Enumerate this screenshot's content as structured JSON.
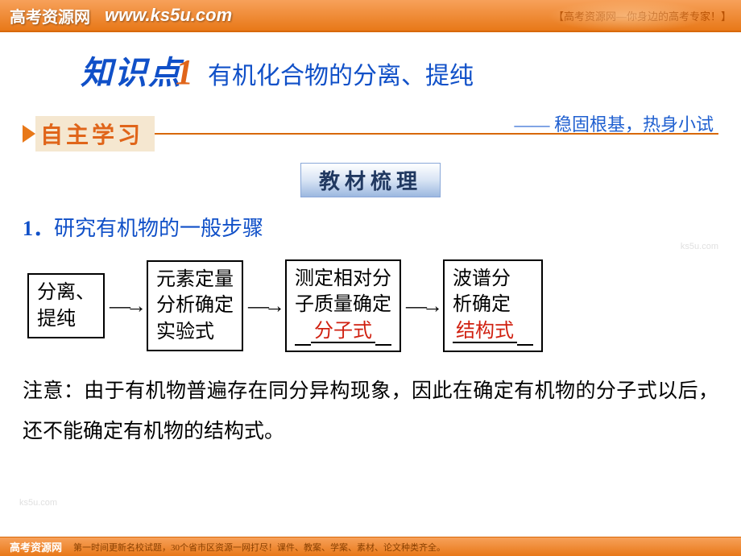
{
  "banner": {
    "logo": "高考资源网",
    "url": "www.ks5u.com",
    "tagline": "【高考资源网—你身边的高考专家！】"
  },
  "title": {
    "prefix": "知识点",
    "num": "1",
    "main": "有机化合物的分离、提纯"
  },
  "section": {
    "label": "自主学习",
    "sub": "—— 稳固根基，热身小试"
  },
  "subheader": "教材梳理",
  "heading1_num": "1．",
  "heading1_text": "研究有机物的一般步骤",
  "flow": {
    "box1_l1": "分离、",
    "box1_l2": "提纯",
    "arrow": "—→",
    "box2_l1": "元素定量",
    "box2_l2": "分析确定",
    "box2_l3": "实验式",
    "box3_l1": "测定相对分",
    "box3_l2": "子质量确定",
    "box3_fill": "分子式",
    "box4_l1": "波谱分",
    "box4_l2": "析确定",
    "box4_fill": "结构式"
  },
  "note": "注意：由于有机物普遍存在同分异构现象，因此在确定有机物的分子式以后，还不能确定有机物的结构式。",
  "bottom": {
    "logo": "高考资源网",
    "text": "第一时间更新名校试题，30个省市区资源一网打尽！课件、教案、学案、素材、论文种类齐全。"
  },
  "watermark": "ks5u.com"
}
